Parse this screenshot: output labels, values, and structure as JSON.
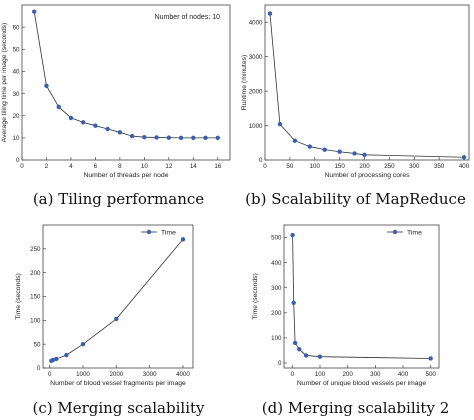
{
  "chart_data": [
    {
      "id": "a",
      "type": "line",
      "caption": "(a) Tiling performance",
      "ylabel": "Average tiling time per image (seconds)",
      "xlabel": "Number of threads per node",
      "annotation": "Number of nodes: 10",
      "xlim": [
        0,
        17
      ],
      "ylim": [
        0,
        70
      ],
      "xticks": [
        0,
        2,
        4,
        6,
        8,
        10,
        12,
        14,
        16
      ],
      "yticks": [
        0,
        10,
        20,
        30,
        40,
        50,
        60
      ],
      "grid": false,
      "series": [
        {
          "color": "#3a5fb0",
          "x": [
            1,
            2,
            3,
            4,
            5,
            6,
            7,
            8,
            9,
            10,
            11,
            12,
            13,
            14,
            15,
            16
          ],
          "y": [
            67,
            33.5,
            24,
            19,
            17,
            15.5,
            14,
            12.5,
            10.8,
            10.3,
            10.2,
            10.1,
            10,
            10,
            10,
            10
          ]
        }
      ]
    },
    {
      "id": "b",
      "type": "line",
      "caption": "(b) Scalability of MapReduce",
      "ylabel": "Runtime (minutes)",
      "xlabel": "Number of processing cores",
      "xlim": [
        0,
        410
      ],
      "ylim": [
        0,
        4500
      ],
      "xticks": [
        0,
        50,
        100,
        150,
        200,
        250,
        300,
        350,
        400
      ],
      "yticks": [
        0,
        1000,
        2000,
        3000,
        4000
      ],
      "grid": false,
      "series": [
        {
          "color": "#3a5fb0",
          "x": [
            10,
            30,
            60,
            90,
            120,
            150,
            180,
            200,
            400
          ],
          "y": [
            4250,
            1040,
            560,
            390,
            300,
            240,
            190,
            150,
            80
          ]
        }
      ]
    },
    {
      "id": "c",
      "type": "line",
      "caption": "(c) Merging scalability",
      "ylabel": "Time (seconds)",
      "xlabel": "Number of blood vessel fragments per image",
      "legend": "Time",
      "legend_position": "top-right",
      "xlim": [
        -200,
        4300
      ],
      "ylim": [
        0,
        300
      ],
      "xticks": [
        0,
        1000,
        2000,
        3000,
        4000
      ],
      "yticks": [
        0,
        50,
        100,
        150,
        200,
        250
      ],
      "grid": false,
      "series": [
        {
          "name": "Time",
          "color": "#3a5fb0",
          "x": [
            50,
            100,
            200,
            500,
            1000,
            2000,
            4000
          ],
          "y": [
            15,
            17,
            19,
            27,
            50,
            103,
            270
          ]
        }
      ]
    },
    {
      "id": "d",
      "type": "line",
      "caption": "(d) Merging scalability 2",
      "ylabel": "Time (seconds)",
      "xlabel": "Number of unique blood vessels per image",
      "legend": "Time",
      "legend_position": "top-right",
      "xlim": [
        -30,
        530
      ],
      "ylim": [
        -20,
        550
      ],
      "xticks": [
        0,
        100,
        200,
        300,
        400,
        500
      ],
      "yticks": [
        0,
        100,
        200,
        300,
        400,
        500
      ],
      "grid": false,
      "series": [
        {
          "name": "Time",
          "color": "#3a5fb0",
          "x": [
            1,
            5,
            10,
            25,
            50,
            100,
            500
          ],
          "y": [
            510,
            240,
            80,
            55,
            30,
            25,
            18
          ]
        }
      ]
    }
  ]
}
